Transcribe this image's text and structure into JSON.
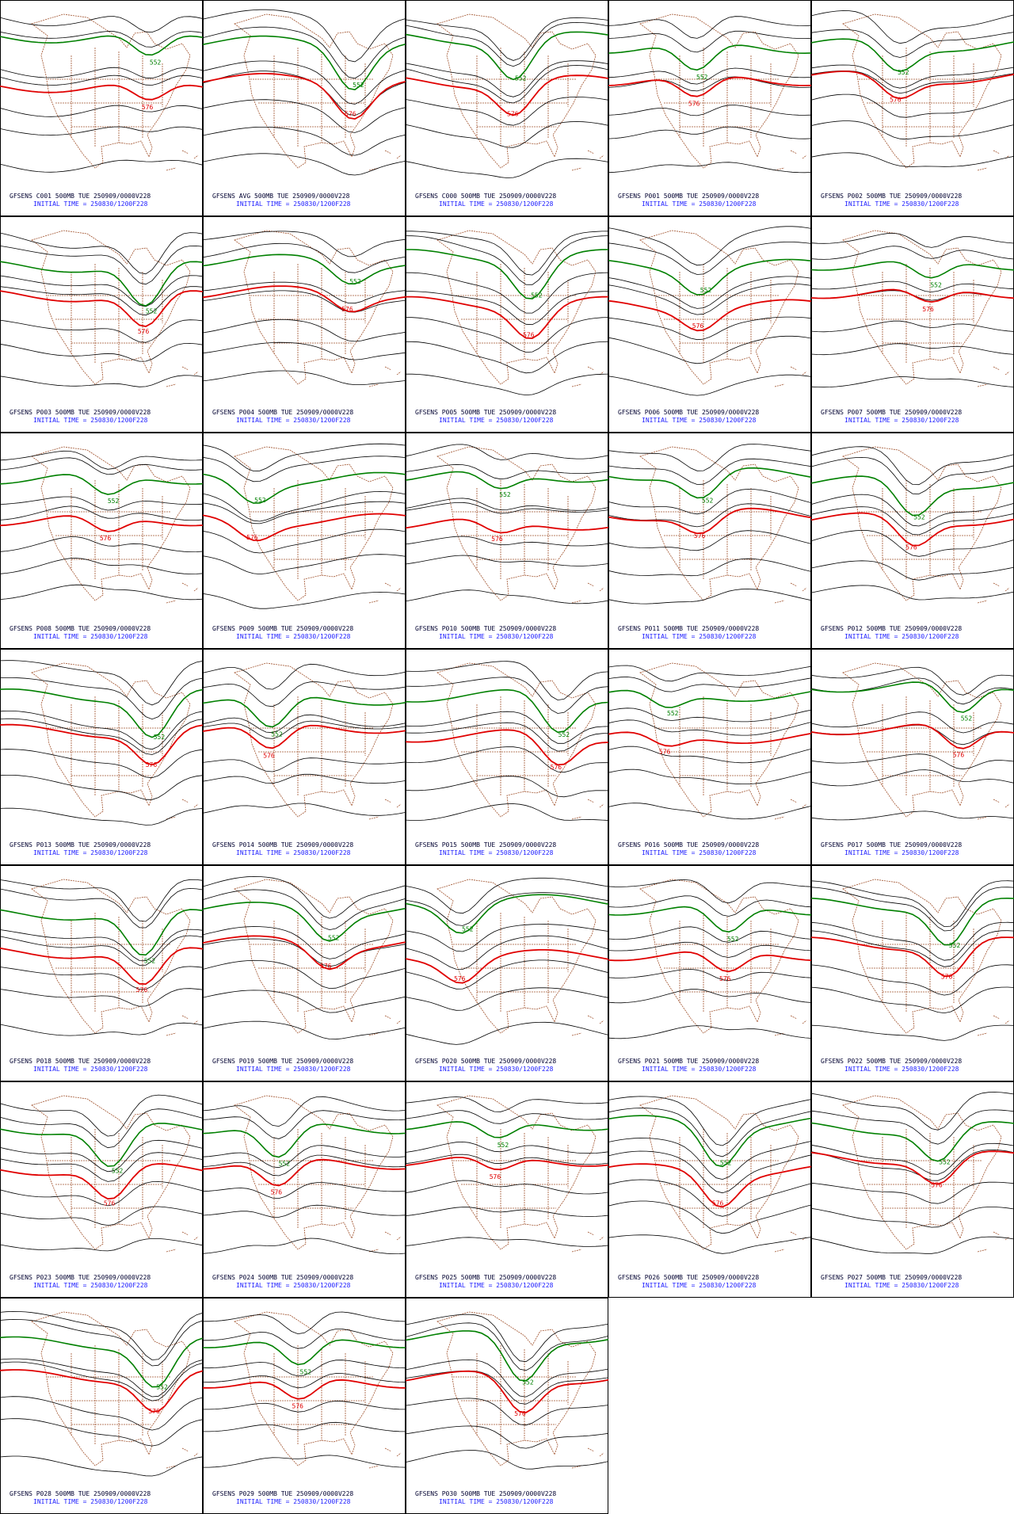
{
  "contour_labels": [
    "576",
    "552"
  ],
  "panels": [
    {
      "title": "GFSENS C001 500MB TUE 250909/0000V228",
      "init": "INITIAL TIME = 250830/1200F228"
    },
    {
      "title": "GFSENS AVG 500MB TUE 250909/0000V228",
      "init": "INITIAL TIME = 250830/1200F228"
    },
    {
      "title": "GFSENS C000 500MB TUE 250909/0000V228",
      "init": "INITIAL TIME = 250830/1200F228"
    },
    {
      "title": "GFSENS P001 500MB TUE 250909/0000V228",
      "init": "INITIAL TIME = 250830/1200F228"
    },
    {
      "title": "GFSENS P002 500MB TUE 250909/0000V228",
      "init": "INITIAL TIME = 250830/1200F228"
    },
    {
      "title": "GFSENS P003 500MB TUE 250909/0000V228",
      "init": "INITIAL TIME = 250830/1200F228"
    },
    {
      "title": "GFSENS P004 500MB TUE 250909/0000V228",
      "init": "INITIAL TIME = 250830/1200F228"
    },
    {
      "title": "GFSENS P005 500MB TUE 250909/0000V228",
      "init": "INITIAL TIME = 250830/1200F228"
    },
    {
      "title": "GFSENS P006 500MB TUE 250909/0000V228",
      "init": "INITIAL TIME = 250830/1200F228"
    },
    {
      "title": "GFSENS P007 500MB TUE 250909/0000V228",
      "init": "INITIAL TIME = 250830/1200F228"
    },
    {
      "title": "GFSENS P008 500MB TUE 250909/0000V228",
      "init": "INITIAL TIME = 250830/1200F228"
    },
    {
      "title": "GFSENS P009 500MB TUE 250909/0000V228",
      "init": "INITIAL TIME = 250830/1200F228"
    },
    {
      "title": "GFSENS P010 500MB TUE 250909/0000V228",
      "init": "INITIAL TIME = 250830/1200F228"
    },
    {
      "title": "GFSENS P011 500MB TUE 250909/0000V228",
      "init": "INITIAL TIME = 250830/1200F228"
    },
    {
      "title": "GFSENS P012 500MB TUE 250909/0000V228",
      "init": "INITIAL TIME = 250830/1200F228"
    },
    {
      "title": "GFSENS P013 500MB TUE 250909/0000V228",
      "init": "INITIAL TIME = 250830/1200F228"
    },
    {
      "title": "GFSENS P014 500MB TUE 250909/0000V228",
      "init": "INITIAL TIME = 250830/1200F228"
    },
    {
      "title": "GFSENS P015 500MB TUE 250909/0000V228",
      "init": "INITIAL TIME = 250830/1200F228"
    },
    {
      "title": "GFSENS P016 500MB TUE 250909/0000V228",
      "init": "INITIAL TIME = 250830/1200F228"
    },
    {
      "title": "GFSENS P017 500MB TUE 250909/0000V228",
      "init": "INITIAL TIME = 250830/1200F228"
    },
    {
      "title": "GFSENS P018 500MB TUE 250909/0000V228",
      "init": "INITIAL TIME = 250830/1200F228"
    },
    {
      "title": "GFSENS P019 500MB TUE 250909/0000V228",
      "init": "INITIAL TIME = 250830/1200F228"
    },
    {
      "title": "GFSENS P020 500MB TUE 250909/0000V228",
      "init": "INITIAL TIME = 250830/1200F228"
    },
    {
      "title": "GFSENS P021 500MB TUE 250909/0000V228",
      "init": "INITIAL TIME = 250830/1200F228"
    },
    {
      "title": "GFSENS P022 500MB TUE 250909/0000V228",
      "init": "INITIAL TIME = 250830/1200F228"
    },
    {
      "title": "GFSENS P023 500MB TUE 250909/0000V228",
      "init": "INITIAL TIME = 250830/1200F228"
    },
    {
      "title": "GFSENS P024 500MB TUE 250909/0000V228",
      "init": "INITIAL TIME = 250830/1200F228"
    },
    {
      "title": "GFSENS P025 500MB TUE 250909/0000V228",
      "init": "INITIAL TIME = 250830/1200F228"
    },
    {
      "title": "GFSENS P026 500MB TUE 250909/0000V228",
      "init": "INITIAL TIME = 250830/1200F228"
    },
    {
      "title": "GFSENS P027 500MB TUE 250909/0000V228",
      "init": "INITIAL TIME = 250830/1200F228"
    },
    {
      "title": "GFSENS P028 500MB TUE 250909/0000V228",
      "init": "INITIAL TIME = 250830/1200F228"
    },
    {
      "title": "GFSENS P029 500MB TUE 250909/0000V228",
      "init": "INITIAL TIME = 250830/1200F228"
    },
    {
      "title": "GFSENS P030 500MB TUE 250909/0000V228",
      "init": "INITIAL TIME = 250830/1200F228"
    }
  ]
}
